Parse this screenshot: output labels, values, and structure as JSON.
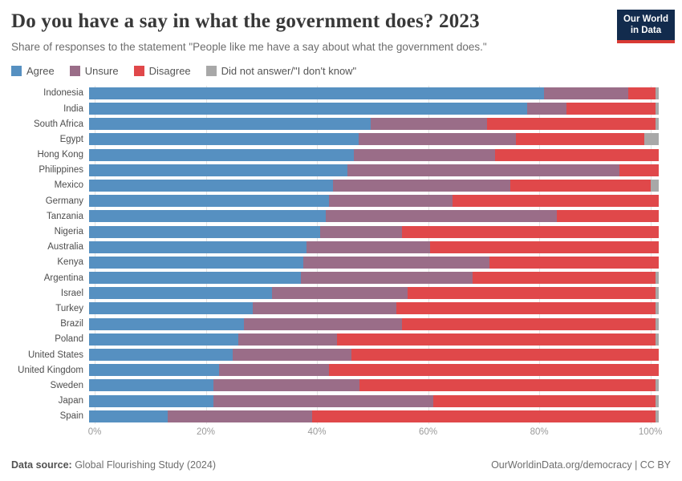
{
  "header": {
    "title": "Do you have a say in what the government does? 2023",
    "subtitle": "Share of responses to the statement \"People like me have a say about what the government does.\""
  },
  "logo": {
    "line1": "Our World",
    "line2": "in Data",
    "bg_color": "#122b4d",
    "stripe_color": "#d93a34"
  },
  "footer": {
    "source_label": "Data source:",
    "source_value": " Global Flourishing Study (2024)",
    "link": "OurWorldinData.org/democracy",
    "license": " | CC BY"
  },
  "chart_data": {
    "type": "bar",
    "stacked": true,
    "orientation": "horizontal",
    "title": "Do you have a say in what the government does? 2023",
    "legend_position": "top",
    "grid": true,
    "xlim": [
      0,
      100
    ],
    "axis_extent": 101.5,
    "x_ticks": [
      {
        "value": 0,
        "label": "0%"
      },
      {
        "value": 20,
        "label": "20%"
      },
      {
        "value": 40,
        "label": "40%"
      },
      {
        "value": 60,
        "label": "60%"
      },
      {
        "value": 80,
        "label": "80%"
      },
      {
        "value": 100,
        "label": "100%"
      }
    ],
    "categories": [
      "Indonesia",
      "India",
      "South Africa",
      "Egypt",
      "Hong Kong",
      "Philippines",
      "Mexico",
      "Germany",
      "Tanzania",
      "Nigeria",
      "Australia",
      "Kenya",
      "Argentina",
      "Israel",
      "Turkey",
      "Brazil",
      "Poland",
      "United States",
      "United Kingdom",
      "Sweden",
      "Japan",
      "Spain"
    ],
    "series": [
      {
        "name": "Agree",
        "color": "#5690c1",
        "values": [
          81,
          78,
          50,
          48,
          47,
          46,
          43.5,
          42.5,
          42,
          41,
          38.5,
          38,
          37.5,
          32.5,
          29,
          27.5,
          26.5,
          25.5,
          23,
          22,
          22,
          14
        ]
      },
      {
        "name": "Unsure",
        "color": "#9a6d88",
        "values": [
          15,
          7,
          20.5,
          28,
          25,
          48.5,
          31.5,
          22,
          41,
          14.5,
          22,
          33,
          30.5,
          24,
          25.5,
          28,
          17.5,
          21,
          19.5,
          26,
          39,
          25.5
        ]
      },
      {
        "name": "Disagree",
        "color": "#e0484a",
        "values": [
          5,
          16,
          30,
          23,
          29,
          7,
          25,
          36.5,
          18,
          45.5,
          40.5,
          30,
          32.5,
          44,
          46,
          45,
          56.5,
          54.5,
          58.5,
          52.5,
          39.5,
          61
        ]
      },
      {
        "name": "Did not answer/\"I don't know\"",
        "color": "#a8a8a8",
        "values": [
          0.5,
          0.5,
          0.5,
          2.5,
          0,
          0,
          1.5,
          0,
          0,
          0,
          0,
          0,
          0.5,
          0.5,
          0.5,
          0.5,
          0.5,
          0,
          0,
          0.5,
          0.5,
          0.5
        ]
      }
    ]
  }
}
